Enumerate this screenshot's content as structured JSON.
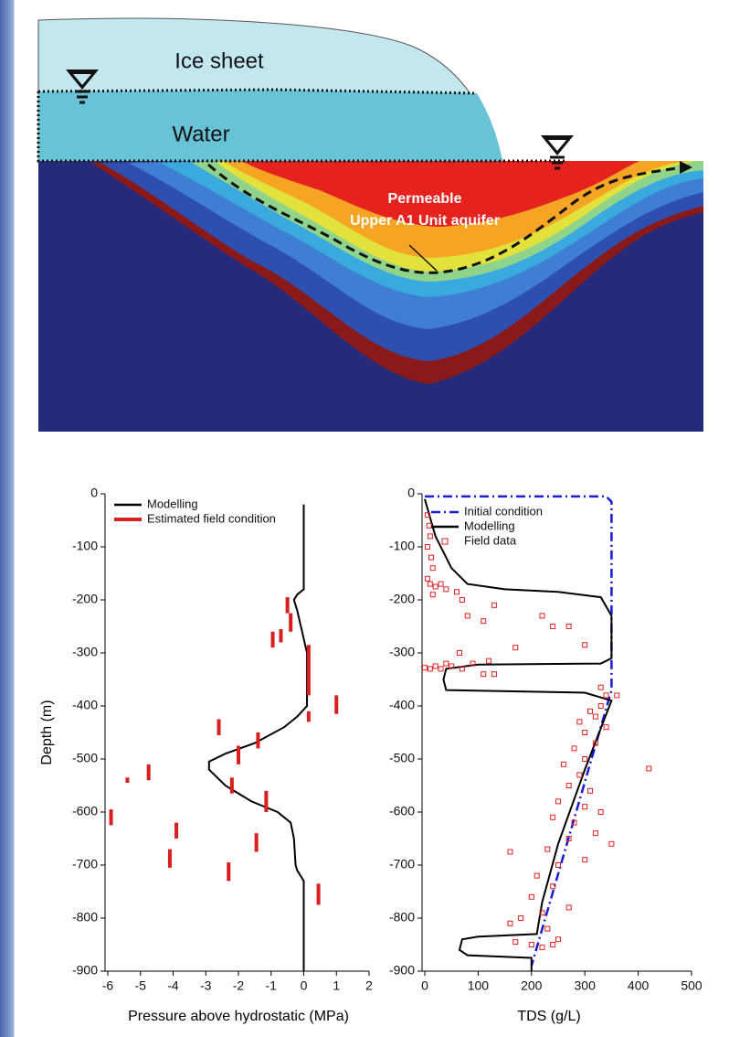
{
  "diagram": {
    "labels": [
      "Ice sheet",
      "Water",
      "Permeable",
      "Upper A1 Unit aquifer"
    ]
  },
  "chart_data": [
    {
      "type": "line",
      "xlabel": "Pressure above hydrostatic (MPa)",
      "ylabel": "Depth (m)",
      "xlim": [
        -6,
        2
      ],
      "ylim": [
        -900,
        0
      ],
      "xticks": [
        -6,
        -5,
        -4,
        -3,
        -2,
        -1,
        0,
        1,
        2
      ],
      "yticks": [
        0,
        -100,
        -200,
        -300,
        -400,
        -500,
        -600,
        -700,
        -800,
        -900
      ],
      "series": [
        {
          "name": "Modelling",
          "type": "line",
          "color": "#000000",
          "dash": "solid",
          "x": [
            0,
            0,
            -0.2,
            -0.3,
            -0.2,
            -0.05,
            0.1,
            0.1,
            0.1,
            -0.2,
            -0.6,
            -1.5,
            -2.4,
            -2.9,
            -2.9,
            -2.4,
            -1.6,
            -0.8,
            -0.4,
            -0.3,
            -0.25,
            -0.2,
            0,
            0,
            0
          ],
          "y": [
            -20,
            -180,
            -190,
            -200,
            -220,
            -260,
            -300,
            -350,
            -400,
            -420,
            -440,
            -470,
            -490,
            -505,
            -520,
            -550,
            -580,
            -600,
            -620,
            -650,
            -700,
            -710,
            -730,
            -760,
            -900
          ]
        },
        {
          "name": "Estimated field condition",
          "type": "segment",
          "color": "#d81e1e",
          "x": [
            -0.5,
            -0.4,
            -0.7,
            -0.95,
            0.15,
            1,
            0.15,
            -2.6,
            -1.4,
            -2,
            -4.75,
            -5.4,
            -2.2,
            -1.15,
            -5.9,
            -3.9,
            -1.45,
            -4.1,
            -2.3,
            0.45
          ],
          "ymin": [
            -225,
            -260,
            -280,
            -290,
            -380,
            -415,
            -430,
            -455,
            -480,
            -510,
            -540,
            -545,
            -565,
            -600,
            -625,
            -650,
            -675,
            -705,
            -730,
            -775
          ],
          "ymax": [
            -195,
            -225,
            -255,
            -260,
            -285,
            -380,
            -410,
            -425,
            -450,
            -475,
            -510,
            -535,
            -535,
            -560,
            -595,
            -620,
            -640,
            -670,
            -695,
            -735
          ]
        }
      ]
    },
    {
      "type": "line",
      "xlabel": "TDS (g/L)",
      "xlim": [
        0,
        500
      ],
      "ylim": [
        -900,
        0
      ],
      "xticks": [
        0,
        100,
        200,
        300,
        400,
        500
      ],
      "yticks": [
        0,
        -100,
        -200,
        -300,
        -400,
        -500,
        -600,
        -700,
        -800,
        -900
      ],
      "series": [
        {
          "name": "Initial condition",
          "type": "line",
          "color": "#1a1adb",
          "dash": "dash-dot",
          "x": [
            0,
            340,
            350,
            350,
            200
          ],
          "y": [
            -5,
            -5,
            -15,
            -370,
            -890
          ]
        },
        {
          "name": "Modelling",
          "type": "line",
          "color": "#000000",
          "dash": "solid",
          "x": [
            0,
            20,
            50,
            80,
            150,
            250,
            330,
            350,
            350,
            330,
            100,
            40,
            35,
            40,
            300,
            350,
            300,
            250,
            220,
            210,
            100,
            70,
            65,
            80,
            200,
            200
          ],
          "y": [
            -10,
            -80,
            -140,
            -170,
            -180,
            -185,
            -195,
            -230,
            -310,
            -320,
            -322,
            -330,
            -350,
            -370,
            -375,
            -390,
            -520,
            -660,
            -770,
            -830,
            -835,
            -840,
            -860,
            -870,
            -875,
            -900
          ]
        },
        {
          "name": "Field data",
          "type": "scatter",
          "color": "#e02020",
          "x": [
            5,
            8,
            10,
            5,
            12,
            15,
            5,
            10,
            20,
            30,
            40,
            60,
            15,
            70,
            130,
            80,
            110,
            220,
            240,
            270,
            300,
            170,
            65,
            0,
            10,
            20,
            30,
            50,
            70,
            90,
            120,
            130,
            110,
            40,
            330,
            340,
            360,
            330,
            310,
            320,
            290,
            340,
            300,
            320,
            280,
            300,
            260,
            420,
            290,
            270,
            310,
            250,
            300,
            330,
            240,
            280,
            320,
            270,
            350,
            230,
            160,
            300,
            250,
            210,
            240,
            200,
            270,
            220,
            180,
            160,
            230,
            250,
            200,
            170,
            220,
            240
          ],
          "y": [
            -40,
            -60,
            -80,
            -100,
            -120,
            -140,
            -160,
            -170,
            -175,
            -170,
            -180,
            -185,
            -190,
            -200,
            -210,
            -230,
            -240,
            -230,
            -250,
            -250,
            -285,
            -290,
            -300,
            -328,
            -330,
            -325,
            -330,
            -325,
            -330,
            -320,
            -315,
            -340,
            -340,
            -320,
            -365,
            -380,
            -380,
            -400,
            -410,
            -420,
            -430,
            -440,
            -450,
            -470,
            -480,
            -500,
            -510,
            -518,
            -530,
            -550,
            -560,
            -580,
            -590,
            -600,
            -610,
            -620,
            -640,
            -650,
            -660,
            -670,
            -675,
            -690,
            -700,
            -720,
            -740,
            -760,
            -780,
            -790,
            -800,
            -810,
            -820,
            -840,
            -850,
            -845,
            -855,
            -850
          ]
        }
      ]
    }
  ]
}
